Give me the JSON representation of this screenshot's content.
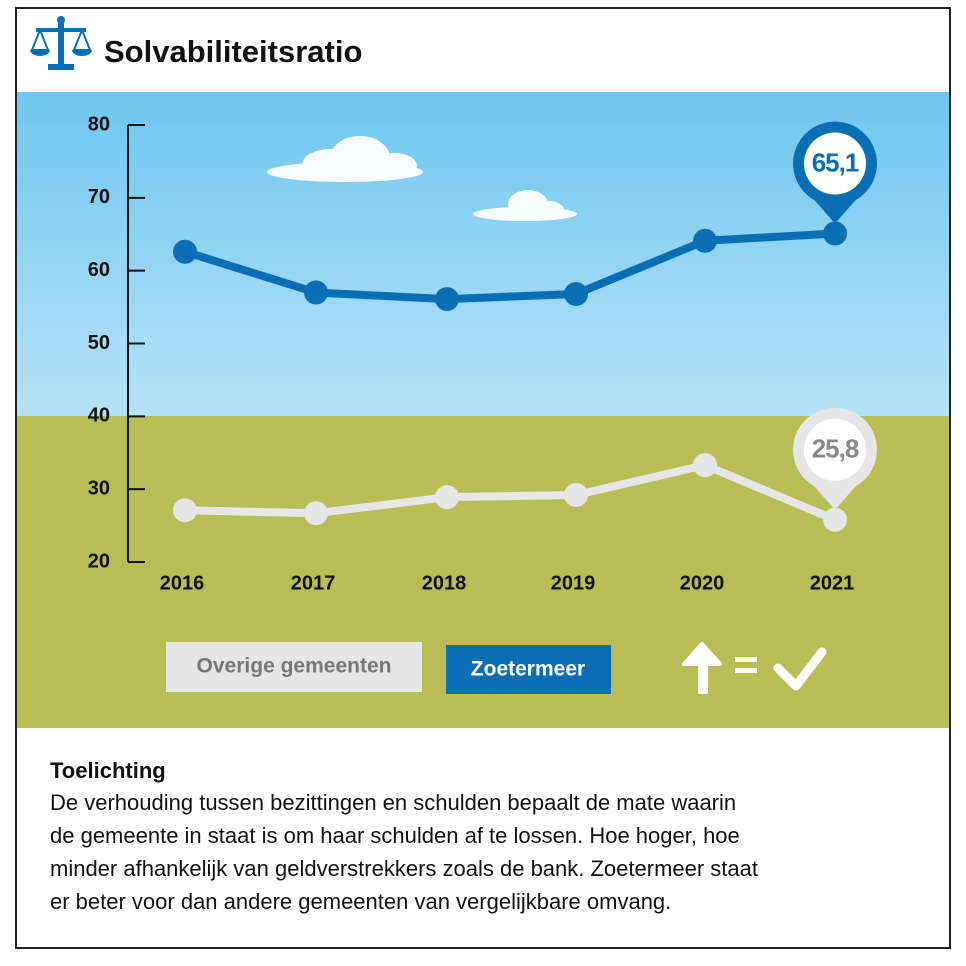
{
  "chart_data": {
    "type": "line",
    "title": "Solvabiliteitsratio",
    "categories": [
      "2016",
      "2017",
      "2018",
      "2019",
      "2020",
      "2021"
    ],
    "series": [
      {
        "name": "Overige gemeenten",
        "color": "#e6e6e6",
        "values": [
          27.1,
          26.7,
          28.9,
          29.2,
          33.3,
          25.8
        ],
        "value_labels": [
          null,
          null,
          null,
          null,
          null,
          "25,8"
        ]
      },
      {
        "name": "Zoetermeer",
        "color": "#0a6eb4",
        "values": [
          62.6,
          57.0,
          56.1,
          56.8,
          64.1,
          65.1
        ],
        "value_labels": [
          null,
          null,
          null,
          null,
          null,
          "65,1"
        ]
      }
    ],
    "ylim": [
      20,
      80
    ],
    "yticks": [
      20,
      30,
      40,
      50,
      60,
      70,
      80
    ],
    "note_title": "Toelichting",
    "note_lines": [
      "De verhouding tussen bezittingen en schulden bepaalt de mate waarin",
      "de gemeente in staat is om haar schulden af te lossen. Hoe hoger, hoe",
      "minder afhankelijk van geldverstrekkers zoals de bank. Zoetermeer staat",
      "er beter voor dan andere gemeenten van vergelijkbare omvang."
    ]
  }
}
